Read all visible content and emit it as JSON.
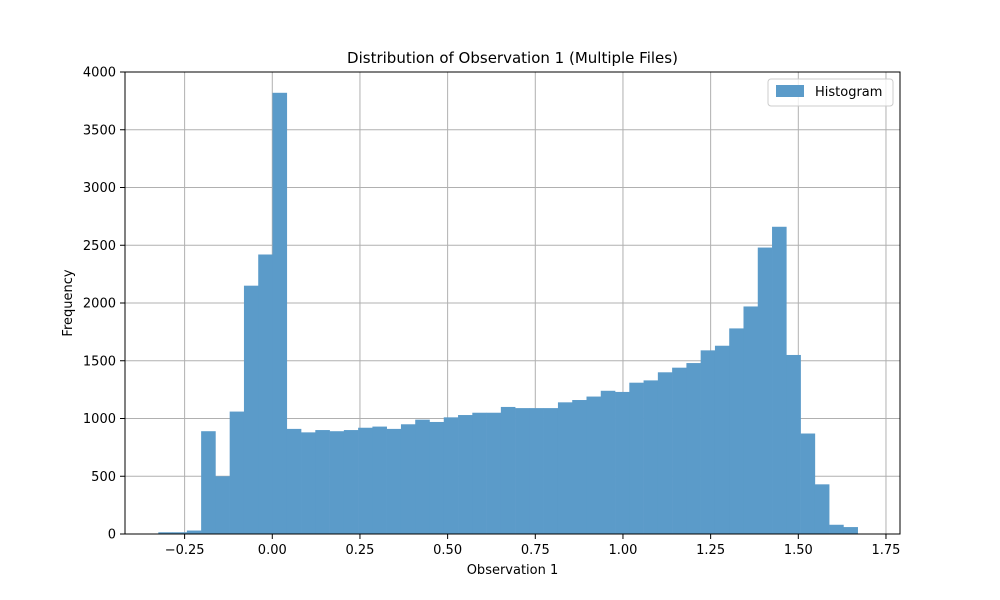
{
  "chart_data": {
    "type": "bar",
    "title": "Distribution of Observation 1 (Multiple Files)",
    "xlabel": "Observation 1",
    "ylabel": "Frequency",
    "xlim": [
      -0.42,
      1.79
    ],
    "ylim": [
      0,
      4000
    ],
    "xticks": [
      -0.25,
      0.0,
      0.25,
      0.5,
      0.75,
      1.0,
      1.25,
      1.5,
      1.75
    ],
    "xtick_labels": [
      "−0.25",
      "0.00",
      "0.25",
      "0.50",
      "0.75",
      "1.00",
      "1.25",
      "1.50",
      "1.75"
    ],
    "yticks": [
      0,
      500,
      1000,
      1500,
      2000,
      2500,
      3000,
      3500,
      4000
    ],
    "ytick_labels": [
      "0",
      "500",
      "1000",
      "1500",
      "2000",
      "2500",
      "3000",
      "3500",
      "4000"
    ],
    "grid": true,
    "legend_position": "top-right",
    "color": "#5b9bc9",
    "series": [
      {
        "name": "Histogram",
        "bin_edges": [
          -0.325,
          -0.2843,
          -0.2436,
          -0.2029,
          -0.1622,
          -0.1215,
          -0.0808,
          -0.0401,
          0.0006,
          0.0413,
          0.082,
          0.1227,
          0.1634,
          0.2041,
          0.2448,
          0.2855,
          0.3262,
          0.3669,
          0.4076,
          0.4483,
          0.489,
          0.5297,
          0.5704,
          0.6111,
          0.6518,
          0.6925,
          0.7332,
          0.7739,
          0.8146,
          0.8553,
          0.896,
          0.9367,
          0.9774,
          1.0181,
          1.0588,
          1.0995,
          1.1402,
          1.1809,
          1.2216,
          1.2623,
          1.303,
          1.3437,
          1.3844,
          1.4251,
          1.4658,
          1.5065,
          1.5472,
          1.5879,
          1.6286,
          1.6693
        ],
        "counts": [
          15,
          15,
          30,
          890,
          500,
          1060,
          2150,
          2420,
          3820,
          910,
          880,
          900,
          890,
          900,
          920,
          930,
          910,
          950,
          990,
          970,
          1010,
          1030,
          1050,
          1050,
          1100,
          1090,
          1090,
          1090,
          1140,
          1160,
          1190,
          1240,
          1230,
          1310,
          1330,
          1400,
          1440,
          1480,
          1590,
          1630,
          1780,
          1970,
          2480,
          2660,
          1550,
          870,
          430,
          80,
          60,
          35
        ]
      }
    ]
  }
}
